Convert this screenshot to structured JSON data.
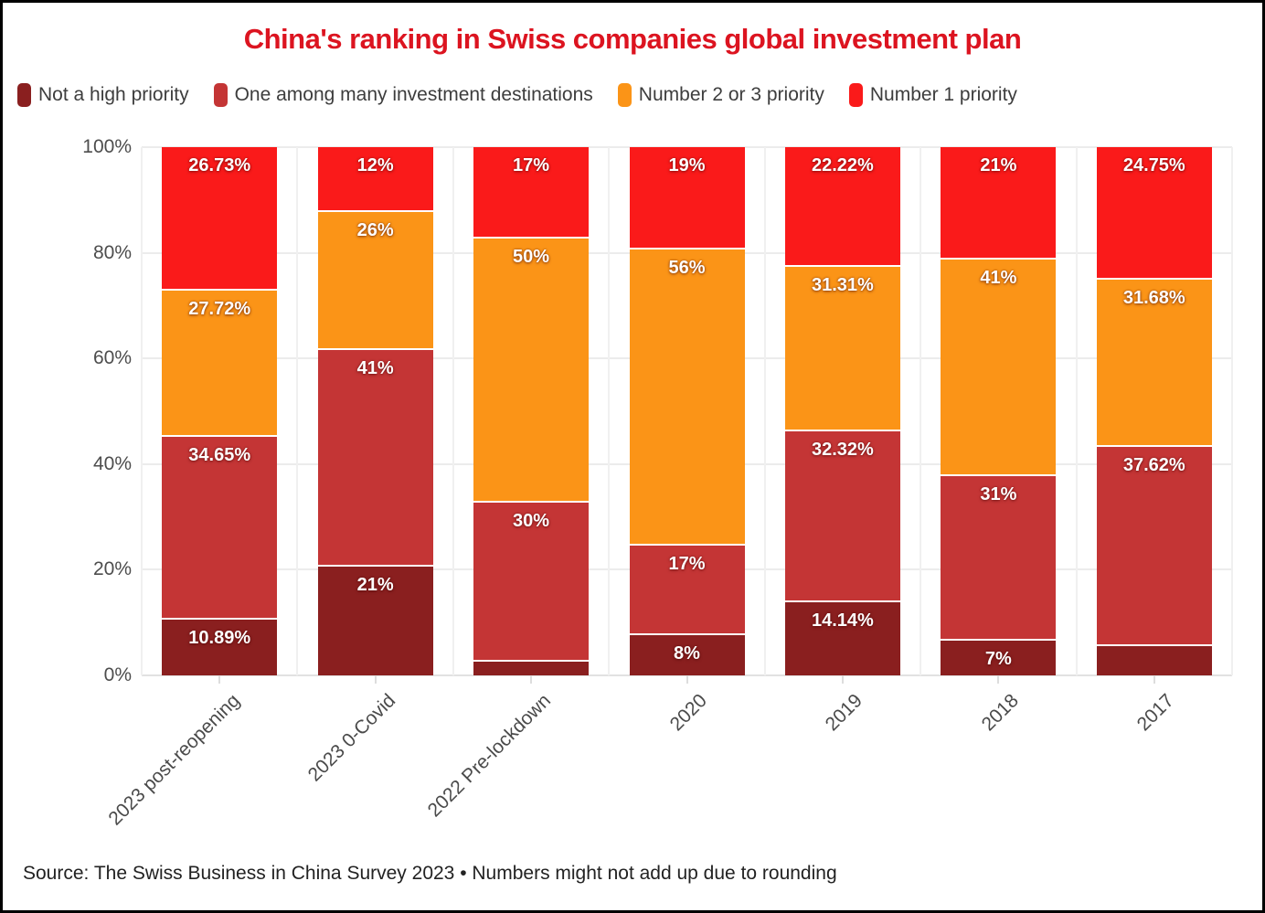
{
  "title": "China's ranking in Swiss companies global investment plan",
  "source_note": "Source: The Swiss Business in China Survey 2023 • Numbers might not add up due to rounding",
  "colors": {
    "title_red": "#DC1420",
    "background": "#FFFFFF",
    "grid": "#ECECEC",
    "axis_text": "#4D4D4D",
    "legend_text": "#3D3D3D",
    "segment_label_text": "#FFFFFF"
  },
  "legend": {
    "items": [
      {
        "label": "Not a high priority",
        "color": "#8A1F1F"
      },
      {
        "label": "One among many investment destinations",
        "color": "#C43535"
      },
      {
        "label": "Number 2 or 3 priority",
        "color": "#FB9417"
      },
      {
        "label": "Number 1 priority",
        "color": "#FA1A1A"
      }
    ]
  },
  "chart_data": {
    "type": "bar",
    "stacked": true,
    "title": "China's ranking in Swiss companies global investment plan",
    "xlabel": "",
    "ylabel": "",
    "ylim": [
      0,
      100
    ],
    "grid": true,
    "legend_position": "top-left",
    "categories": [
      "2023 post-reopening",
      "2023 0-Covid",
      "2022 Pre-lockdown",
      "2020",
      "2019",
      "2018",
      "2017"
    ],
    "yticks": [
      {
        "label": "0%",
        "value": 0
      },
      {
        "label": "20%",
        "value": 20
      },
      {
        "label": "40%",
        "value": 40
      },
      {
        "label": "60%",
        "value": 60
      },
      {
        "label": "80%",
        "value": 80
      },
      {
        "label": "100%",
        "value": 100
      }
    ],
    "series": [
      {
        "name": "Not a high priority",
        "color": "#8A1F1F",
        "values": [
          10.89,
          21,
          3,
          8,
          14.14,
          7,
          5.94
        ],
        "labels": [
          "10.89%",
          "21%",
          "",
          "8%",
          "14.14%",
          "7%",
          ""
        ]
      },
      {
        "name": "One among many investment destinations",
        "color": "#C43535",
        "values": [
          34.65,
          41,
          30,
          17,
          32.32,
          31,
          37.62
        ],
        "labels": [
          "34.65%",
          "41%",
          "30%",
          "17%",
          "32.32%",
          "31%",
          "37.62%"
        ]
      },
      {
        "name": "Number 2 or 3 priority",
        "color": "#FB9417",
        "values": [
          27.72,
          26,
          50,
          56,
          31.31,
          41,
          31.68
        ],
        "labels": [
          "27.72%",
          "26%",
          "50%",
          "56%",
          "31.31%",
          "41%",
          "31.68%"
        ]
      },
      {
        "name": "Number 1 priority",
        "color": "#FA1A1A",
        "values": [
          26.73,
          12,
          17,
          19,
          22.22,
          21,
          24.75
        ],
        "labels": [
          "26.73%",
          "12%",
          "17%",
          "19%",
          "22.22%",
          "21%",
          "24.75%"
        ]
      }
    ]
  }
}
